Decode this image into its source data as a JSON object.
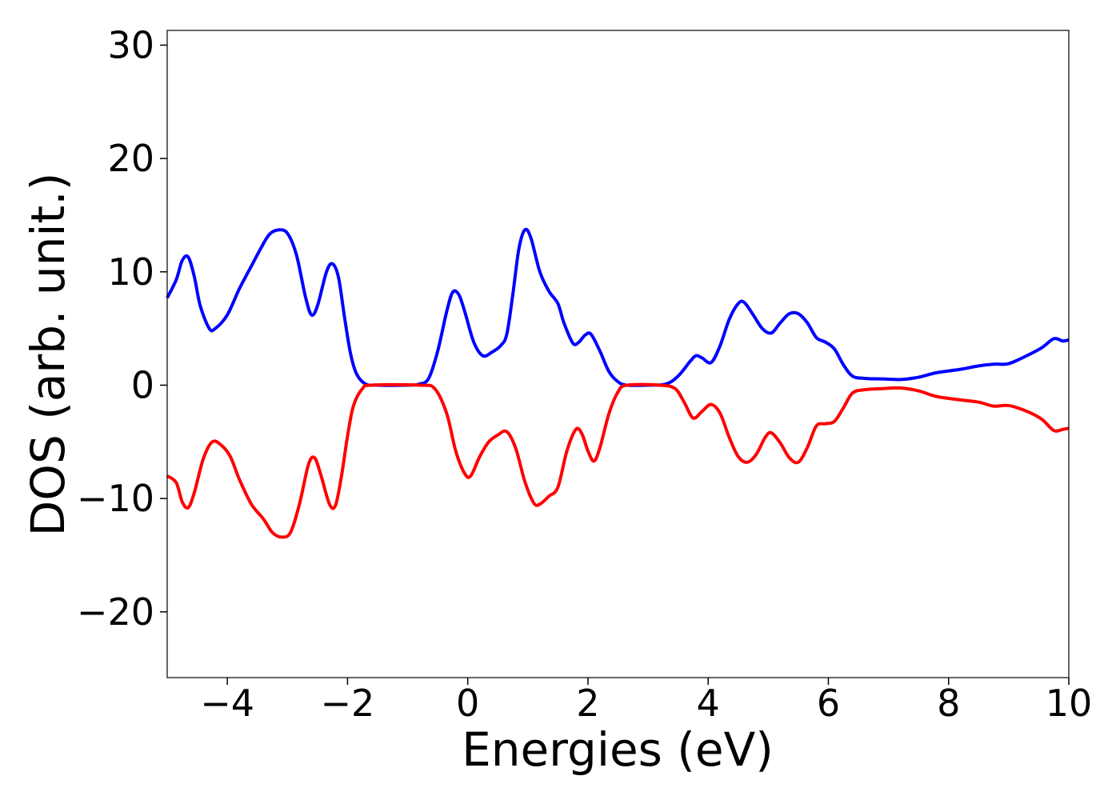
{
  "chart_data": {
    "type": "line",
    "title": "",
    "xlabel": "Energies (eV)",
    "ylabel": "DOS (arb. unit.)",
    "xlim": [
      -5,
      10
    ],
    "ylim": [
      -25.8,
      31.3
    ],
    "grid": false,
    "legend": "none",
    "xticks": [
      {
        "value": -4,
        "label": "−4"
      },
      {
        "value": -2,
        "label": "−2"
      },
      {
        "value": 0,
        "label": "0"
      },
      {
        "value": 2,
        "label": "2"
      },
      {
        "value": 4,
        "label": "4"
      },
      {
        "value": 6,
        "label": "6"
      },
      {
        "value": 8,
        "label": "8"
      },
      {
        "value": 10,
        "label": "10"
      }
    ],
    "yticks": [
      {
        "value": -20,
        "label": "−20"
      },
      {
        "value": -10,
        "label": "−10"
      },
      {
        "value": 0,
        "label": "0"
      },
      {
        "value": 10,
        "label": "10"
      },
      {
        "value": 20,
        "label": "20"
      },
      {
        "value": 30,
        "label": "30"
      }
    ],
    "series": [
      {
        "color": "#0000ff",
        "points": [
          [
            -5.0,
            7.7
          ],
          [
            -4.85,
            9.3
          ],
          [
            -4.75,
            11.0
          ],
          [
            -4.65,
            11.3
          ],
          [
            -4.55,
            9.6
          ],
          [
            -4.45,
            7.0
          ],
          [
            -4.3,
            5.0
          ],
          [
            -4.2,
            5.0
          ],
          [
            -4.0,
            6.2
          ],
          [
            -3.8,
            8.5
          ],
          [
            -3.6,
            10.5
          ],
          [
            -3.45,
            12.0
          ],
          [
            -3.3,
            13.3
          ],
          [
            -3.15,
            13.7
          ],
          [
            -3.0,
            13.4
          ],
          [
            -2.85,
            11.5
          ],
          [
            -2.7,
            7.8
          ],
          [
            -2.6,
            6.2
          ],
          [
            -2.5,
            7.0
          ],
          [
            -2.35,
            10.0
          ],
          [
            -2.25,
            10.7
          ],
          [
            -2.15,
            9.5
          ],
          [
            -2.05,
            6.0
          ],
          [
            -1.95,
            2.8
          ],
          [
            -1.85,
            1.0
          ],
          [
            -1.7,
            0.1
          ],
          [
            -1.5,
            0.0
          ],
          [
            -1.0,
            0.0
          ],
          [
            -0.8,
            0.1
          ],
          [
            -0.65,
            0.6
          ],
          [
            -0.5,
            3.0
          ],
          [
            -0.35,
            6.5
          ],
          [
            -0.25,
            8.2
          ],
          [
            -0.15,
            8.0
          ],
          [
            -0.05,
            6.5
          ],
          [
            0.1,
            3.8
          ],
          [
            0.25,
            2.6
          ],
          [
            0.4,
            2.9
          ],
          [
            0.55,
            3.5
          ],
          [
            0.65,
            4.5
          ],
          [
            0.75,
            8.0
          ],
          [
            0.85,
            12.0
          ],
          [
            0.95,
            13.7
          ],
          [
            1.05,
            13.0
          ],
          [
            1.2,
            10.0
          ],
          [
            1.35,
            8.3
          ],
          [
            1.5,
            7.2
          ],
          [
            1.6,
            5.5
          ],
          [
            1.75,
            3.7
          ],
          [
            1.85,
            3.8
          ],
          [
            1.95,
            4.4
          ],
          [
            2.05,
            4.5
          ],
          [
            2.2,
            3.0
          ],
          [
            2.35,
            1.2
          ],
          [
            2.5,
            0.3
          ],
          [
            2.65,
            0.0
          ],
          [
            3.0,
            0.0
          ],
          [
            3.3,
            0.1
          ],
          [
            3.5,
            0.8
          ],
          [
            3.7,
            2.1
          ],
          [
            3.8,
            2.6
          ],
          [
            3.9,
            2.4
          ],
          [
            4.05,
            2.0
          ],
          [
            4.2,
            3.5
          ],
          [
            4.35,
            5.8
          ],
          [
            4.5,
            7.2
          ],
          [
            4.6,
            7.3
          ],
          [
            4.75,
            6.2
          ],
          [
            4.9,
            5.0
          ],
          [
            5.05,
            4.6
          ],
          [
            5.2,
            5.5
          ],
          [
            5.35,
            6.3
          ],
          [
            5.5,
            6.3
          ],
          [
            5.65,
            5.5
          ],
          [
            5.8,
            4.2
          ],
          [
            5.95,
            3.8
          ],
          [
            6.1,
            3.2
          ],
          [
            6.25,
            1.8
          ],
          [
            6.4,
            0.8
          ],
          [
            6.6,
            0.6
          ],
          [
            6.9,
            0.55
          ],
          [
            7.2,
            0.5
          ],
          [
            7.5,
            0.7
          ],
          [
            7.8,
            1.1
          ],
          [
            8.2,
            1.4
          ],
          [
            8.5,
            1.7
          ],
          [
            8.75,
            1.85
          ],
          [
            9.0,
            1.9
          ],
          [
            9.3,
            2.6
          ],
          [
            9.55,
            3.3
          ],
          [
            9.75,
            4.1
          ],
          [
            9.9,
            3.9
          ],
          [
            10.0,
            4.0
          ]
        ]
      },
      {
        "color": "#ff0000",
        "points": [
          [
            -5.0,
            -8.0
          ],
          [
            -4.85,
            -8.6
          ],
          [
            -4.75,
            -10.3
          ],
          [
            -4.65,
            -10.8
          ],
          [
            -4.55,
            -9.5
          ],
          [
            -4.4,
            -6.5
          ],
          [
            -4.25,
            -5.0
          ],
          [
            -4.1,
            -5.3
          ],
          [
            -3.95,
            -6.3
          ],
          [
            -3.8,
            -8.3
          ],
          [
            -3.6,
            -10.5
          ],
          [
            -3.4,
            -11.8
          ],
          [
            -3.25,
            -13.0
          ],
          [
            -3.1,
            -13.4
          ],
          [
            -2.95,
            -13.0
          ],
          [
            -2.8,
            -10.5
          ],
          [
            -2.65,
            -7.0
          ],
          [
            -2.55,
            -6.4
          ],
          [
            -2.45,
            -7.8
          ],
          [
            -2.3,
            -10.5
          ],
          [
            -2.2,
            -10.6
          ],
          [
            -2.1,
            -8.0
          ],
          [
            -2.0,
            -4.5
          ],
          [
            -1.9,
            -1.8
          ],
          [
            -1.75,
            -0.3
          ],
          [
            -1.6,
            0.0
          ],
          [
            -0.8,
            0.0
          ],
          [
            -0.55,
            -0.3
          ],
          [
            -0.35,
            -2.5
          ],
          [
            -0.2,
            -5.8
          ],
          [
            -0.05,
            -7.8
          ],
          [
            0.05,
            -8.0
          ],
          [
            0.2,
            -6.3
          ],
          [
            0.35,
            -5.0
          ],
          [
            0.5,
            -4.4
          ],
          [
            0.65,
            -4.1
          ],
          [
            0.8,
            -5.6
          ],
          [
            0.95,
            -8.5
          ],
          [
            1.1,
            -10.4
          ],
          [
            1.2,
            -10.5
          ],
          [
            1.35,
            -9.8
          ],
          [
            1.5,
            -9.0
          ],
          [
            1.65,
            -5.8
          ],
          [
            1.8,
            -3.9
          ],
          [
            1.9,
            -4.3
          ],
          [
            2.0,
            -5.8
          ],
          [
            2.1,
            -6.7
          ],
          [
            2.2,
            -5.5
          ],
          [
            2.35,
            -2.5
          ],
          [
            2.5,
            -0.6
          ],
          [
            2.65,
            0.0
          ],
          [
            3.2,
            0.0
          ],
          [
            3.45,
            -0.3
          ],
          [
            3.6,
            -1.5
          ],
          [
            3.75,
            -2.9
          ],
          [
            3.9,
            -2.3
          ],
          [
            4.05,
            -1.7
          ],
          [
            4.2,
            -2.5
          ],
          [
            4.35,
            -4.6
          ],
          [
            4.5,
            -6.3
          ],
          [
            4.65,
            -6.8
          ],
          [
            4.8,
            -6.1
          ],
          [
            4.95,
            -4.6
          ],
          [
            5.05,
            -4.2
          ],
          [
            5.2,
            -5.1
          ],
          [
            5.35,
            -6.4
          ],
          [
            5.5,
            -6.8
          ],
          [
            5.65,
            -5.5
          ],
          [
            5.8,
            -3.6
          ],
          [
            5.95,
            -3.4
          ],
          [
            6.1,
            -3.2
          ],
          [
            6.25,
            -2.0
          ],
          [
            6.4,
            -0.7
          ],
          [
            6.6,
            -0.4
          ],
          [
            6.9,
            -0.3
          ],
          [
            7.2,
            -0.25
          ],
          [
            7.5,
            -0.5
          ],
          [
            7.8,
            -1.0
          ],
          [
            8.2,
            -1.3
          ],
          [
            8.5,
            -1.5
          ],
          [
            8.75,
            -1.85
          ],
          [
            9.0,
            -1.8
          ],
          [
            9.3,
            -2.3
          ],
          [
            9.55,
            -3.0
          ],
          [
            9.75,
            -4.0
          ],
          [
            9.9,
            -3.9
          ],
          [
            10.0,
            -3.8
          ]
        ]
      }
    ]
  }
}
